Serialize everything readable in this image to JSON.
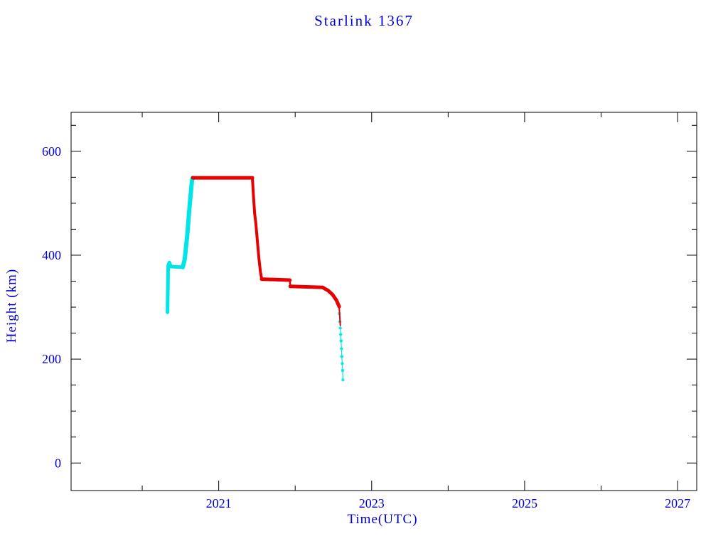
{
  "page": {
    "title": "Starlink 1367"
  },
  "chart_data": {
    "type": "scatter",
    "title": "Starlink 1367",
    "xlabel": "Time(UTC)",
    "ylabel": "Height (km)",
    "xlim": [
      2019.07,
      2027.25
    ],
    "ylim": [
      -53,
      675
    ],
    "xticks": [
      2021,
      2023,
      2025,
      2027
    ],
    "xtick_labels": [
      "2021",
      "2023",
      "2025",
      "2027"
    ],
    "minor_xticks": [
      2020,
      2022,
      2024,
      2026
    ],
    "yticks": [
      0,
      200,
      400,
      600
    ],
    "ytick_labels": [
      "0",
      "200",
      "400",
      "600"
    ],
    "minor_yticks": [
      50,
      100,
      150,
      250,
      300,
      350,
      450,
      500,
      550,
      650
    ],
    "grid": false,
    "legend": "none",
    "colors": {
      "text": "#0000cd",
      "axis": "#000000",
      "cyan_series": "#00e6e6",
      "red_series": "#e60000",
      "background": "#ffffff"
    },
    "series": [
      {
        "name": "cyan-series",
        "color": "#00e6e6",
        "segments": [
          {
            "points": [
              [
                2020.33,
                290
              ],
              [
                2020.34,
                380
              ],
              [
                2020.355,
                386
              ],
              [
                2020.375,
                378
              ],
              [
                2020.53,
                377
              ]
            ],
            "width": 5,
            "markers": false
          },
          {
            "points": [
              [
                2020.53,
                377
              ],
              [
                2020.555,
                392
              ],
              [
                2020.59,
                440
              ],
              [
                2020.62,
                495
              ],
              [
                2020.65,
                543
              ],
              [
                2020.66,
                549
              ]
            ],
            "width": 6,
            "markers": false
          },
          {
            "points": [
              [
                2022.57,
                303
              ],
              [
                2022.585,
                272
              ],
              [
                2022.6,
                235
              ],
              [
                2022.61,
                205
              ],
              [
                2022.62,
                178
              ],
              [
                2022.625,
                160
              ]
            ],
            "width": 1.2,
            "markers": true
          }
        ]
      },
      {
        "name": "red-series",
        "color": "#e60000",
        "segments": [
          {
            "points": [
              [
                2020.66,
                549
              ],
              [
                2021.44,
                549
              ]
            ],
            "width": 5,
            "markers": false
          },
          {
            "points": [
              [
                2021.44,
                549
              ],
              [
                2021.455,
                512
              ],
              [
                2021.47,
                480
              ],
              [
                2021.485,
                462
              ],
              [
                2021.495,
                445
              ],
              [
                2021.51,
                420
              ],
              [
                2021.525,
                395
              ],
              [
                2021.545,
                368
              ],
              [
                2021.56,
                356
              ]
            ],
            "width": 4,
            "markers": false
          },
          {
            "points": [
              [
                2021.56,
                354
              ],
              [
                2021.93,
                352
              ]
            ],
            "width": 5,
            "markers": false
          },
          {
            "points": [
              [
                2021.93,
                352
              ],
              [
                2021.935,
                341
              ]
            ],
            "width": 2.5,
            "markers": false
          },
          {
            "points": [
              [
                2021.935,
                340
              ],
              [
                2022.36,
                338
              ]
            ],
            "width": 5,
            "markers": false
          },
          {
            "points": [
              [
                2022.36,
                338
              ],
              [
                2022.43,
                332
              ],
              [
                2022.49,
                324
              ],
              [
                2022.54,
                313
              ],
              [
                2022.575,
                301
              ]
            ],
            "width": 5,
            "markers": false
          },
          {
            "points": [
              [
                2022.575,
                300
              ],
              [
                2022.59,
                265
              ]
            ],
            "width": 2,
            "markers": false
          }
        ]
      }
    ]
  }
}
